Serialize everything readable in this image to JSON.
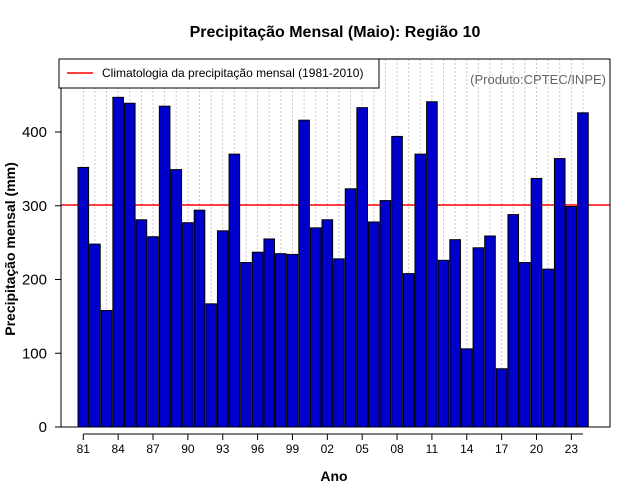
{
  "chart_data": {
    "type": "bar",
    "title": "Precipitação Mensal (Maio): Região 10",
    "xlabel": "Ano",
    "ylabel": "Precipitação mensal (mm)",
    "product_label": "(Produto:CPTEC/INPE)",
    "ylim": [
      0,
      490
    ],
    "yticks": [
      0,
      100,
      200,
      300,
      400
    ],
    "categories": [
      "81",
      "82",
      "83",
      "84",
      "85",
      "86",
      "87",
      "88",
      "89",
      "90",
      "91",
      "92",
      "93",
      "94",
      "95",
      "96",
      "97",
      "98",
      "99",
      "00",
      "01",
      "02",
      "03",
      "04",
      "05",
      "06",
      "07",
      "08",
      "09",
      "10",
      "11",
      "12",
      "13",
      "14",
      "15",
      "16",
      "17",
      "18",
      "19",
      "20",
      "21",
      "22",
      "23",
      "24"
    ],
    "x_tick_labels": [
      "81",
      "84",
      "87",
      "90",
      "93",
      "96",
      "99",
      "02",
      "05",
      "08",
      "11",
      "14",
      "17",
      "20",
      "23"
    ],
    "values": [
      352,
      248,
      158,
      447,
      439,
      281,
      258,
      435,
      349,
      277,
      294,
      167,
      266,
      370,
      223,
      237,
      255,
      235,
      234,
      416,
      270,
      281,
      228,
      323,
      433,
      278,
      307,
      394,
      208,
      370,
      441,
      226,
      254,
      106,
      243,
      259,
      79,
      288,
      223,
      337,
      214,
      364,
      299,
      426
    ],
    "climatology": {
      "label": "Climatologia da precipitação mensal (1981-2010)",
      "value": 301,
      "color": "#ff0000",
      "legend_position": "top-left"
    },
    "bar_color": "#0000cd",
    "grid": "vertical-dotted"
  }
}
